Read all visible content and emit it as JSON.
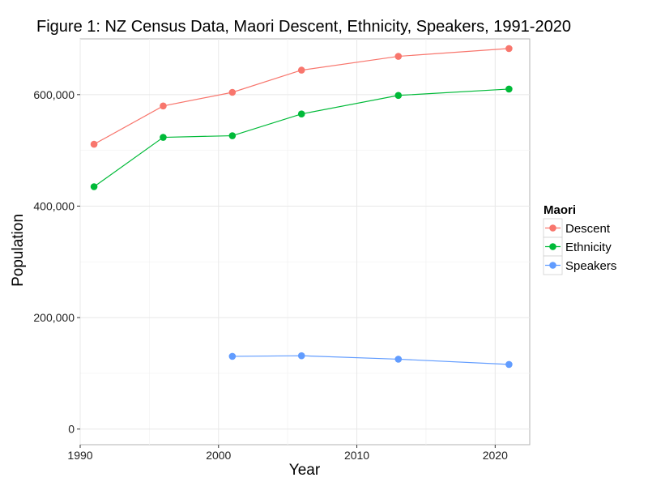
{
  "chart_data": {
    "type": "line",
    "title": "Figure 1: NZ Census Data, Maori Descent, Ethnicity, Speakers, 1991-2020",
    "xlabel": "Year",
    "ylabel": "Population",
    "xlim": [
      1990,
      2022.5
    ],
    "ylim": [
      -28000,
      700000
    ],
    "x_ticks": [
      1990,
      2000,
      2010,
      2020
    ],
    "x_tick_labels": [
      "1990",
      "2000",
      "2010",
      "2020"
    ],
    "y_ticks": [
      0,
      200000,
      400000,
      600000
    ],
    "y_tick_labels": [
      "0",
      "200,000",
      "400,000",
      "600,000"
    ],
    "grid": true,
    "legend": {
      "title": "Maori",
      "position": "right"
    },
    "series": [
      {
        "name": "Descent",
        "color": "#F8766D",
        "points": [
          {
            "x": 1991,
            "y": 511000
          },
          {
            "x": 1996,
            "y": 579700
          },
          {
            "x": 2001,
            "y": 604100
          },
          {
            "x": 2006,
            "y": 643900
          },
          {
            "x": 2013,
            "y": 668700
          },
          {
            "x": 2021,
            "y": 682700
          }
        ]
      },
      {
        "name": "Ethnicity",
        "color": "#00BA38",
        "points": [
          {
            "x": 1991,
            "y": 434800
          },
          {
            "x": 1996,
            "y": 523400
          },
          {
            "x": 2001,
            "y": 526300
          },
          {
            "x": 2006,
            "y": 565300
          },
          {
            "x": 2013,
            "y": 598600
          },
          {
            "x": 2021,
            "y": 610000
          }
        ]
      },
      {
        "name": "Speakers",
        "color": "#619CFF",
        "points": [
          {
            "x": 2001,
            "y": 130500
          },
          {
            "x": 2006,
            "y": 131600
          },
          {
            "x": 2013,
            "y": 125400
          },
          {
            "x": 2021,
            "y": 116000
          }
        ]
      }
    ]
  }
}
